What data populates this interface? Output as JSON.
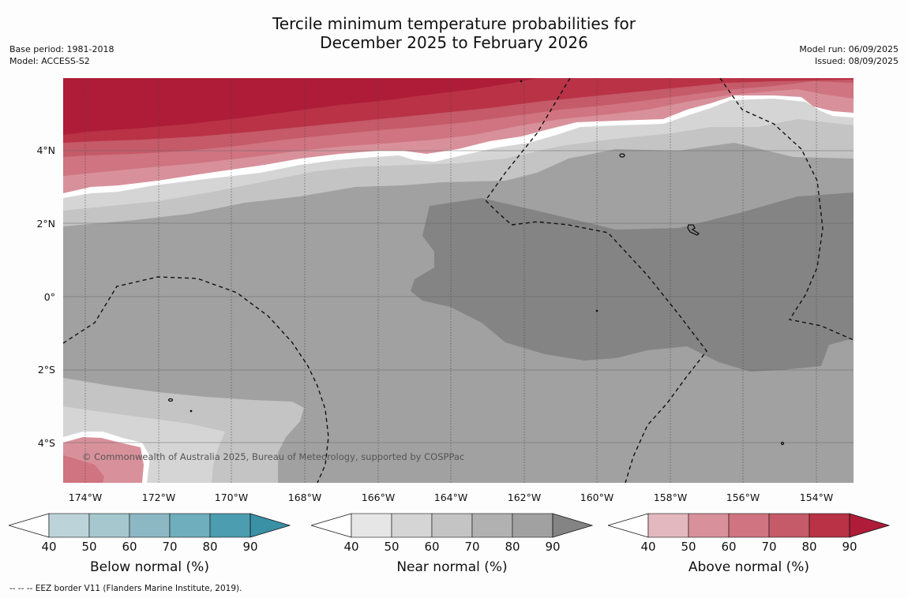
{
  "title": {
    "line1": "Tercile minimum temperature probabilities for",
    "line2": "December 2025 to February 2026"
  },
  "meta_left": {
    "base_period": "Base period: 1981-2018",
    "model": "Model: ACCESS-S2"
  },
  "meta_right": {
    "model_run": "Model run: 06/09/2025",
    "issued": "Issued: 08/09/2025"
  },
  "lat_labels": [
    "4°N",
    "2°N",
    "0°",
    "2°S",
    "4°S"
  ],
  "lon_labels": [
    "174°W",
    "172°W",
    "170°W",
    "168°W",
    "166°W",
    "164°W",
    "162°W",
    "160°W",
    "158°W",
    "156°W",
    "154°W"
  ],
  "copyright": "© Commonwealth of Australia 2025, Bureau of Meteorology, supported by COSPPac",
  "colorbars": [
    {
      "label": "Below normal (%)",
      "ticks": [
        "40",
        "50",
        "60",
        "70",
        "80",
        "90"
      ],
      "colors": [
        "#ffffff",
        "#bdd3da",
        "#a6c7cd",
        "#8cb8c4",
        "#6faebc",
        "#4b9daf",
        "#3a90a4"
      ]
    },
    {
      "label": "Near normal (%)",
      "ticks": [
        "40",
        "50",
        "60",
        "70",
        "80",
        "90"
      ],
      "colors": [
        "#ffffff",
        "#e6e6e6",
        "#d5d5d5",
        "#c4c4c4",
        "#b1b1b1",
        "#a1a1a1",
        "#848484"
      ]
    },
    {
      "label": "Above normal (%)",
      "ticks": [
        "40",
        "50",
        "60",
        "70",
        "80",
        "90"
      ],
      "colors": [
        "#ffffff",
        "#e3b8be",
        "#d8919b",
        "#cf7480",
        "#c55a68",
        "#b93246",
        "#ae1c38"
      ]
    }
  ],
  "footnote": "--  --  -- EEZ border V11 (Flanders Marine Institute, 2019)."
}
